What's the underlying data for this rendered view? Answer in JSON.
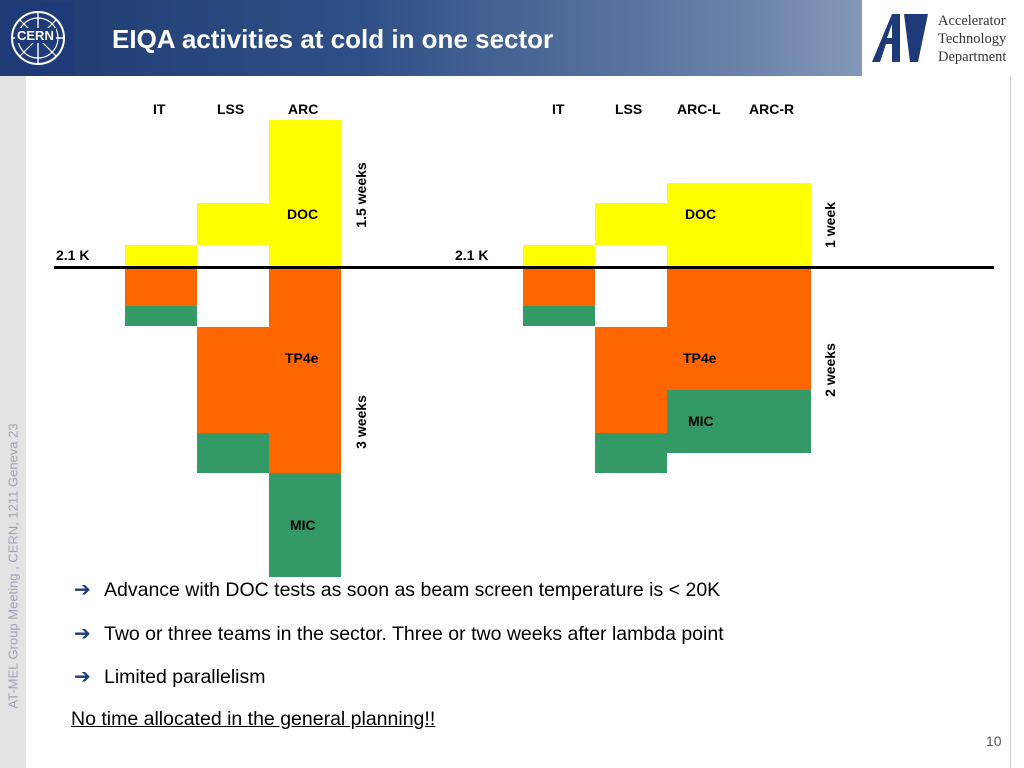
{
  "header": {
    "title": "EIQA activities at cold in one sector",
    "cern_logo_text": "CERN",
    "atd_logo_text": [
      "Accelerator",
      "Technology",
      "Department"
    ]
  },
  "side_text": "AT-MEL Group Meeting , CERN, 1211 Geneva 23",
  "left_diagram": {
    "columns": [
      "IT",
      "LSS",
      "ARC"
    ],
    "temp_label": "2.1 K",
    "labels": {
      "doc": "DOC",
      "tp4e": "TP4e",
      "mic": "MIC"
    },
    "duration_top": "1.5 weeks",
    "duration_bottom": "3 weeks"
  },
  "right_diagram": {
    "columns": [
      "IT",
      "LSS",
      "ARC-L",
      "ARC-R"
    ],
    "temp_label": "2.1 K",
    "labels": {
      "doc": "DOC",
      "tp4e": "TP4e",
      "mic": "MIC"
    },
    "duration_top": "1 week",
    "duration_bottom": "2 weeks"
  },
  "bullets": [
    "Advance with DOC tests as soon as beam screen temperature is < 20K",
    "Two or three teams in the sector. Three or two weeks after lambda point",
    "Limited parallelism"
  ],
  "note": "No time allocated in the general planning!!",
  "page_number": "10"
}
